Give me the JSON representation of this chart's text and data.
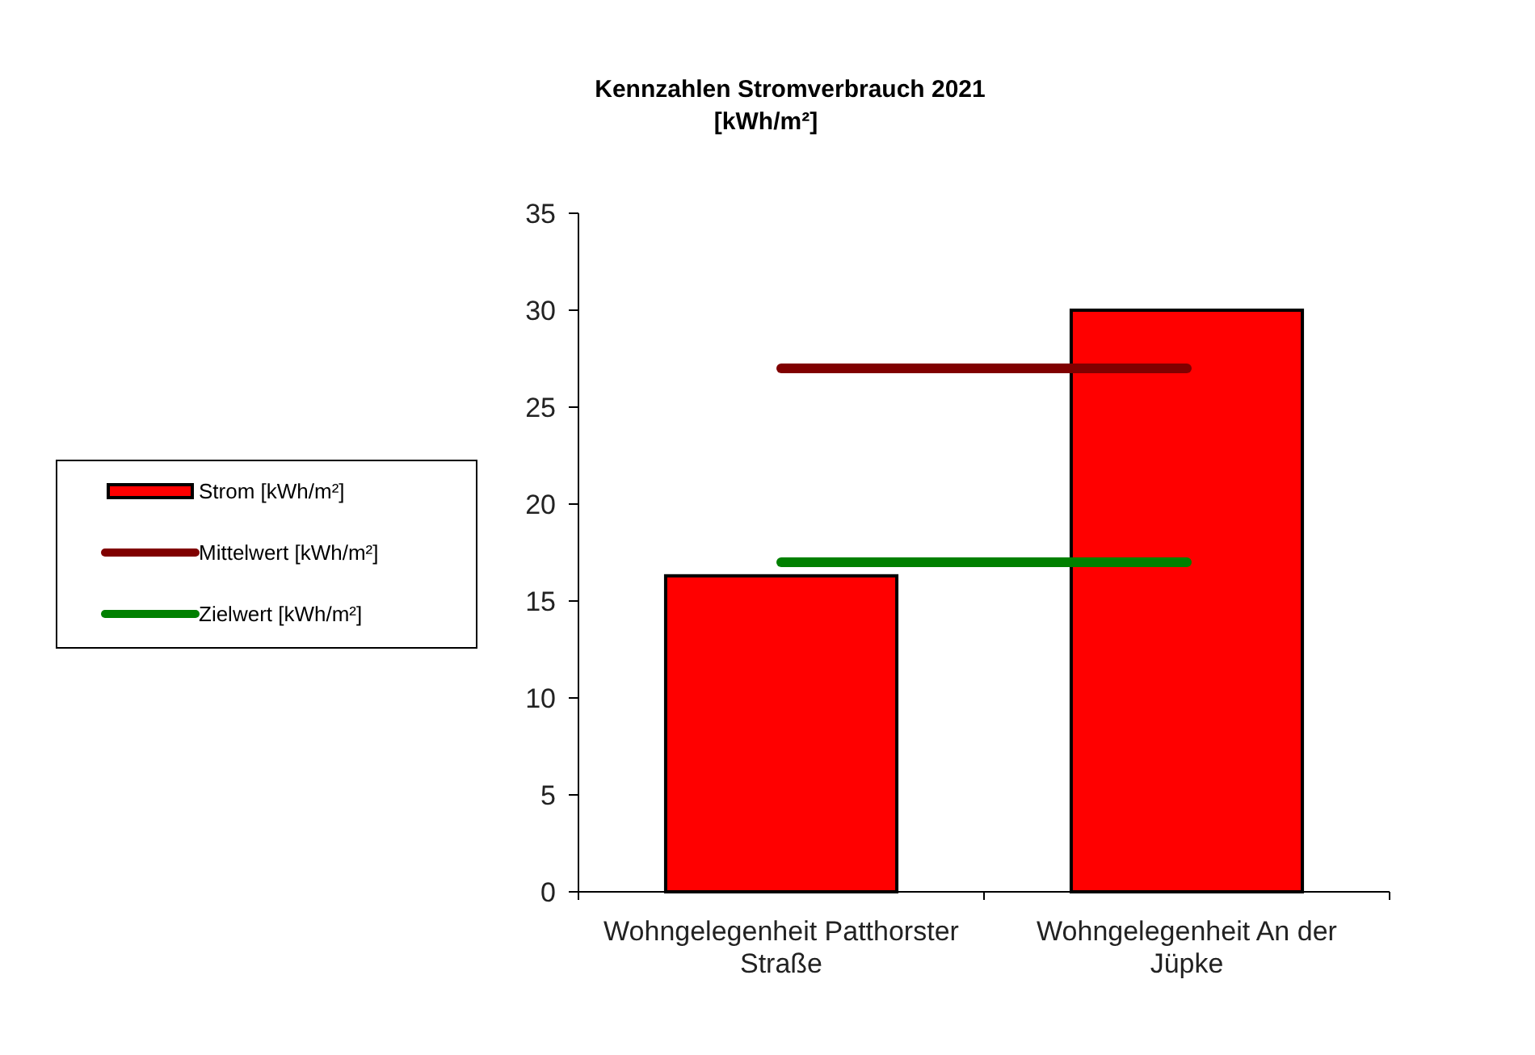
{
  "chart_data": {
    "type": "bar",
    "title": "Kennzahlen Stromverbrauch 2021\n[kWh/m²]",
    "categories": [
      "Wohngelegenheit Patthorster Straße",
      "Wohngelegenheit An der Jüpke"
    ],
    "series": [
      {
        "name": "Strom [kWh/m²]",
        "color": "#ff0000",
        "values": [
          16.3,
          30.0
        ]
      },
      {
        "name": "Mittelwert [kWh/m²]",
        "type": "line",
        "color": "#800000",
        "values": [
          27,
          27
        ]
      },
      {
        "name": "Zielwert [kWh/m²]",
        "type": "line",
        "color": "#008000",
        "values": [
          17,
          17
        ]
      }
    ],
    "ylim": [
      0,
      35
    ],
    "yticks": [
      0,
      5,
      10,
      15,
      20,
      25,
      30,
      35
    ],
    "grid": false,
    "legend": "left"
  }
}
